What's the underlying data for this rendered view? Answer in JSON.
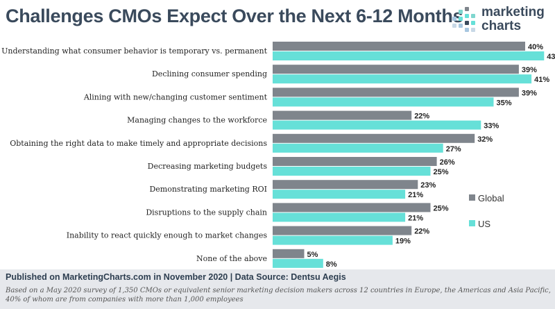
{
  "header": {
    "title": "Challenges CMOs Expect Over the Next 6-12 Months",
    "logo_line1": "marketing",
    "logo_line2": "charts"
  },
  "colors": {
    "global": "#7f858c",
    "us": "#66e0d8",
    "title": "#3a4a5c",
    "footer_bg": "#e6e8ec"
  },
  "chart_data": {
    "type": "bar",
    "orientation": "horizontal",
    "categories": [
      "Understanding what consumer behavior is temporary vs. permanent",
      "Declining consumer spending",
      "Alining with new/changing  customer sentiment",
      "Managing changes to the workforce",
      "Obtaining the right data to make timely and appropriate decisions",
      "Decreasing marketing budgets",
      "Demonstrating marketing ROI",
      "Disruptions to the supply chain",
      "Inability to react quickly enough to market changes",
      "None of the above"
    ],
    "series": [
      {
        "name": "Global",
        "values": [
          40,
          39,
          39,
          22,
          32,
          26,
          23,
          25,
          22,
          5
        ]
      },
      {
        "name": "US",
        "values": [
          43,
          41,
          35,
          33,
          27,
          25,
          21,
          21,
          19,
          8
        ]
      }
    ],
    "value_suffix": "%",
    "xlim": [
      0,
      45
    ],
    "legend": "right",
    "grid": false
  },
  "footer": {
    "published": "Published on MarketingCharts.com in November 2020 | Data Source: Dentsu Aegis",
    "note_line1": "Based on a May 2020 survey of 1,350 CMOs or equivalent senior marketing decision makers across 12 countries in Europe, the Americas and Asia Pacific,",
    "note_line2": "40% of whom are from companies with more than 1,000 employees"
  }
}
